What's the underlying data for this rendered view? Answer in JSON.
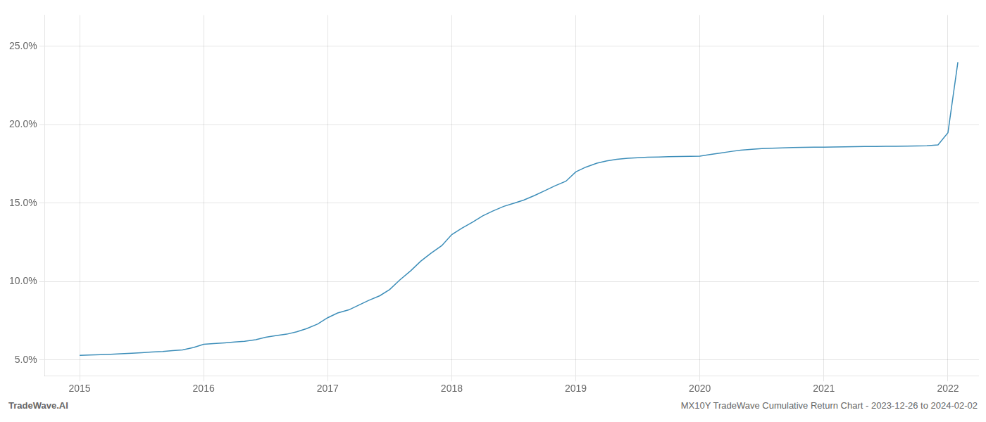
{
  "chart_data": {
    "type": "line",
    "x": [
      2015.0,
      2015.08,
      2015.17,
      2015.25,
      2015.33,
      2015.42,
      2015.5,
      2015.58,
      2015.67,
      2015.75,
      2015.83,
      2015.92,
      2016.0,
      2016.08,
      2016.17,
      2016.25,
      2016.33,
      2016.42,
      2016.5,
      2016.58,
      2016.67,
      2016.75,
      2016.83,
      2016.92,
      2017.0,
      2017.08,
      2017.17,
      2017.25,
      2017.33,
      2017.42,
      2017.5,
      2017.58,
      2017.67,
      2017.75,
      2017.83,
      2017.92,
      2018.0,
      2018.08,
      2018.17,
      2018.25,
      2018.33,
      2018.42,
      2018.5,
      2018.58,
      2018.67,
      2018.75,
      2018.83,
      2018.92,
      2019.0,
      2019.08,
      2019.17,
      2019.25,
      2019.33,
      2019.42,
      2019.5,
      2019.58,
      2019.67,
      2019.75,
      2019.83,
      2019.92,
      2020.0,
      2020.08,
      2020.17,
      2020.25,
      2020.33,
      2020.42,
      2020.5,
      2020.58,
      2020.67,
      2020.75,
      2020.83,
      2020.92,
      2021.0,
      2021.08,
      2021.17,
      2021.25,
      2021.33,
      2021.42,
      2021.5,
      2021.58,
      2021.67,
      2021.75,
      2021.83,
      2021.92,
      2022.0,
      2022.08
    ],
    "values": [
      5.3,
      5.32,
      5.34,
      5.37,
      5.4,
      5.43,
      5.47,
      5.51,
      5.55,
      5.6,
      5.65,
      5.8,
      6.0,
      6.05,
      6.1,
      6.15,
      6.2,
      6.3,
      6.45,
      6.55,
      6.65,
      6.8,
      7.0,
      7.3,
      7.7,
      8.0,
      8.2,
      8.5,
      8.8,
      9.1,
      9.5,
      10.1,
      10.7,
      11.3,
      11.8,
      12.3,
      13.0,
      13.4,
      13.8,
      14.2,
      14.5,
      14.8,
      15.0,
      15.2,
      15.5,
      15.8,
      16.1,
      16.4,
      17.0,
      17.3,
      17.55,
      17.7,
      17.8,
      17.87,
      17.9,
      17.93,
      17.95,
      17.97,
      17.98,
      17.99,
      18.0,
      18.1,
      18.2,
      18.3,
      18.38,
      18.44,
      18.48,
      18.51,
      18.53,
      18.55,
      18.56,
      18.57,
      18.58,
      18.59,
      18.6,
      18.61,
      18.62,
      18.62,
      18.63,
      18.63,
      18.64,
      18.65,
      18.66,
      18.72,
      19.5,
      24.0
    ],
    "color": "#3d8eb9",
    "xlim": [
      2014.72,
      2022.25
    ],
    "xticks": [
      2015,
      2016,
      2017,
      2018,
      2019,
      2020,
      2021,
      2022
    ],
    "ylim": [
      4.0,
      27.0
    ],
    "yticks": [
      {
        "value": 5.0,
        "label": "5.0%"
      },
      {
        "value": 10.0,
        "label": "10.0%"
      },
      {
        "value": 15.0,
        "label": "15.0%"
      },
      {
        "value": 20.0,
        "label": "20.0%"
      },
      {
        "value": 25.0,
        "label": "25.0%"
      }
    ],
    "grid": true,
    "annotations": [
      "TradeWave.AI",
      "MX10Y TradeWave Cumulative Return Chart - 2023-12-26 to 2024-02-02"
    ]
  }
}
